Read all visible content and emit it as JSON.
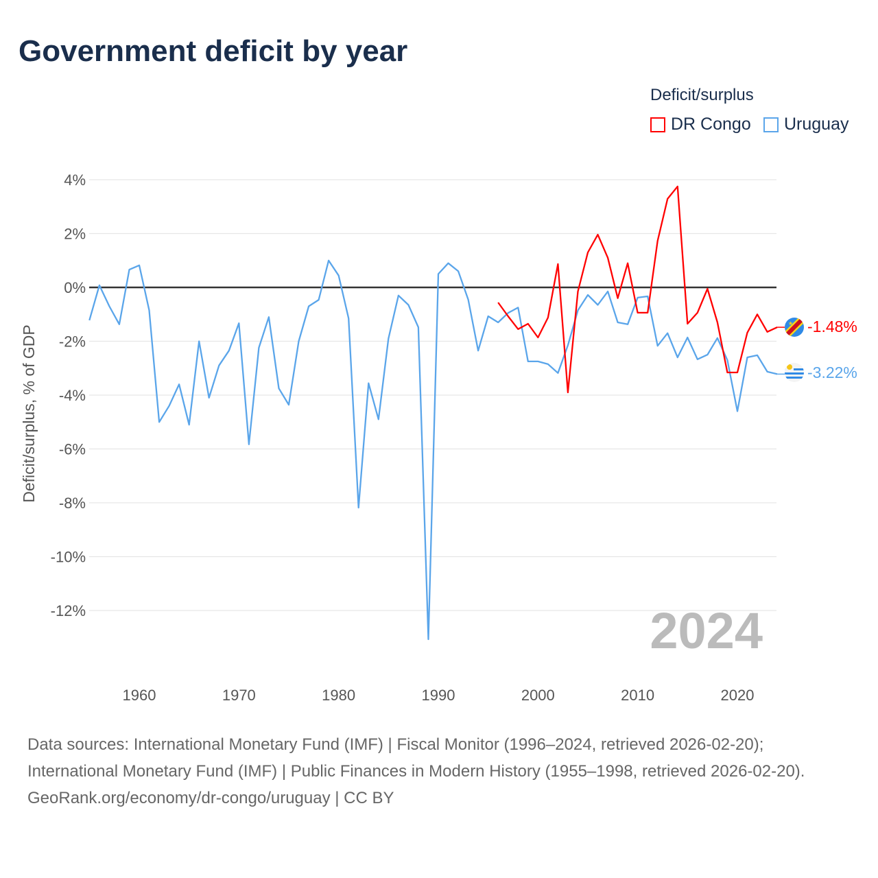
{
  "title": "Government deficit by year",
  "legend": {
    "title": "Deficit/surplus",
    "items": [
      {
        "name": "DR Congo",
        "color": "#ff0000"
      },
      {
        "name": "Uruguay",
        "color": "#5aa5ea"
      }
    ]
  },
  "year_watermark": "2024",
  "end_labels": {
    "dr_congo": "-1.48%",
    "uruguay": "-3.22%"
  },
  "sources": {
    "line1": "Data sources: International Monetary Fund (IMF) | Fiscal Monitor (1996–2024, retrieved 2026-02-20);",
    "line2": "International Monetary Fund (IMF) | Public Finances in Modern History (1955–1998, retrieved 2026-02-20).",
    "line3": "GeoRank.org/economy/dr-congo/uruguay | CC BY"
  },
  "chart_data": {
    "type": "line",
    "title": "Government deficit by year",
    "xlabel": "",
    "ylabel": "Deficit/surplus, % of GDP",
    "xlim": [
      1955,
      2024
    ],
    "ylim": [
      -13.2,
      4
    ],
    "xticks": [
      1960,
      1970,
      1980,
      1990,
      2000,
      2010,
      2020
    ],
    "xtick_labels": [
      "1960",
      "1970",
      "1980",
      "1990",
      "2000",
      "2010",
      "2020"
    ],
    "yticks": [
      4,
      2,
      0,
      -2,
      -4,
      -6,
      -8,
      -10,
      -12
    ],
    "ytick_labels": [
      "4%",
      "2%",
      "0%",
      "-2%",
      "-4%",
      "-6%",
      "-8%",
      "-10%",
      "-12%"
    ],
    "grid": true,
    "legend_position": "top-right",
    "series": [
      {
        "name": "DR Congo",
        "color": "#ff0000",
        "start_year": 1996,
        "values": [
          -0.56,
          -1.07,
          -1.55,
          -1.35,
          -1.86,
          -1.12,
          0.87,
          -3.9,
          -0.15,
          1.3,
          1.96,
          1.1,
          -0.4,
          0.9,
          -0.94,
          -0.94,
          1.73,
          3.29,
          3.75,
          -1.35,
          -0.94,
          -0.05,
          -1.3,
          -3.16,
          -3.16,
          -1.68,
          -1.0,
          -1.65,
          -1.48
        ]
      },
      {
        "name": "Uruguay",
        "color": "#5aa5ea",
        "start_year": 1955,
        "values": [
          -1.22,
          0.08,
          -0.7,
          -1.37,
          0.66,
          0.82,
          -0.85,
          -5.0,
          -4.4,
          -3.6,
          -5.1,
          -2.0,
          -4.1,
          -2.9,
          -2.35,
          -1.33,
          -5.83,
          -2.24,
          -1.1,
          -3.75,
          -4.36,
          -2.0,
          -0.7,
          -0.46,
          1.0,
          0.44,
          -1.15,
          -8.18,
          -3.56,
          -4.9,
          -1.9,
          -0.3,
          -0.65,
          -1.48,
          -13.07,
          0.5,
          0.9,
          0.6,
          -0.45,
          -2.35,
          -1.07,
          -1.3,
          -0.95,
          -0.75,
          -2.75,
          -2.75,
          -2.85,
          -3.18,
          -2.15,
          -0.85,
          -0.28,
          -0.65,
          -0.15,
          -1.3,
          -1.37,
          -0.38,
          -0.33,
          -2.17,
          -1.7,
          -2.6,
          -1.86,
          -2.67,
          -2.5,
          -1.88,
          -2.7,
          -4.6,
          -2.6,
          -2.52,
          -3.13,
          -3.22
        ]
      }
    ]
  }
}
